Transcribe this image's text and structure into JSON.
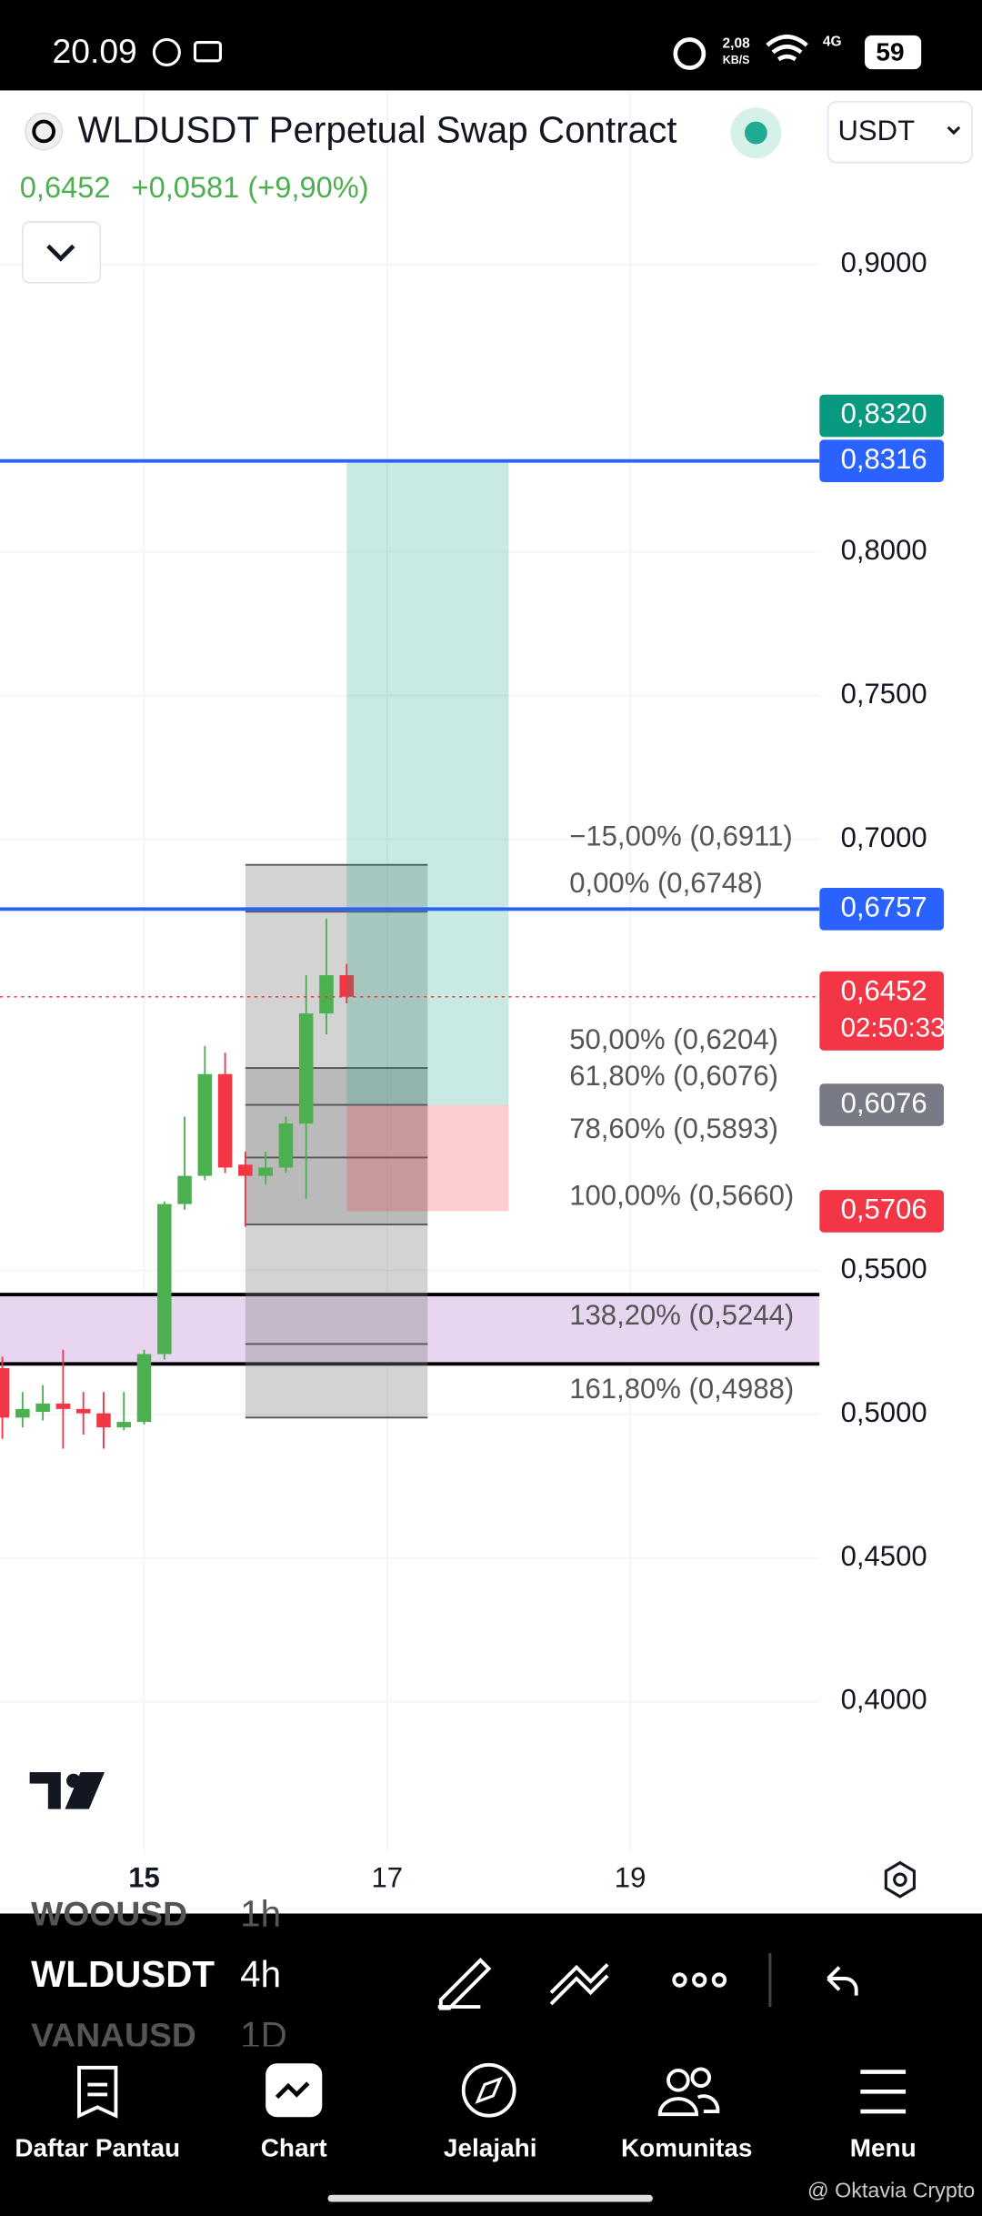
{
  "status_bar": {
    "time": "20.09",
    "speed": "2,08",
    "speed_unit": "KB/S",
    "network": "4G",
    "battery": "59"
  },
  "header": {
    "title": "WLDUSDT Perpetual Swap Contract",
    "currency": "USDT",
    "price": "0,6452",
    "change": "+0,0581 (+9,90%)"
  },
  "chart_data": {
    "type": "candlestick",
    "x": [
      13.8333,
      14,
      14.1667,
      14.3333,
      14.5,
      14.6667,
      14.8333,
      15,
      15.1667,
      15.3333,
      15.5,
      15.6667,
      15.8333,
      16,
      16.1667,
      16.3333,
      16.5,
      16.6667
    ],
    "open": [
      0.516,
      0.4988,
      0.5008,
      0.5037,
      0.5018,
      0.5003,
      0.4954,
      0.4973,
      0.5209,
      0.5731,
      0.5829,
      0.6183,
      0.5868,
      0.5829,
      0.5858,
      0.6011,
      0.6394,
      0.6527
    ],
    "high": [
      0.52,
      0.5077,
      0.5101,
      0.5224,
      0.5077,
      0.5077,
      0.5077,
      0.5224,
      0.574,
      0.6035,
      0.6281,
      0.6257,
      0.5913,
      0.5913,
      0.6035,
      0.6527,
      0.6724,
      0.6566
    ],
    "low": [
      0.4914,
      0.4954,
      0.4978,
      0.488,
      0.4929,
      0.488,
      0.4944,
      0.4964,
      0.519,
      0.5711,
      0.5814,
      0.5839,
      0.5652,
      0.5799,
      0.5839,
      0.575,
      0.6321,
      0.6429
    ],
    "close": [
      0.4988,
      0.5018,
      0.5037,
      0.5018,
      0.5003,
      0.4954,
      0.4973,
      0.5209,
      0.5731,
      0.5829,
      0.6183,
      0.5858,
      0.5829,
      0.5858,
      0.6011,
      0.6394,
      0.6527,
      0.6452
    ],
    "up_color": "#4caf50",
    "down_color": "#f23645",
    "xlim": [
      13.814,
      20.558
    ],
    "xticks": [
      15,
      17,
      19
    ],
    "ylim": [
      0.3479,
      0.9605
    ],
    "yticks": [
      {
        "value": 0.9,
        "label": "0,9000"
      },
      {
        "value": 0.8,
        "label": "0,8000"
      },
      {
        "value": 0.75,
        "label": "0,7500"
      },
      {
        "value": 0.7,
        "label": "0,7000"
      },
      {
        "value": 0.55,
        "label": "0,5500"
      },
      {
        "value": 0.5,
        "label": "0,5000"
      },
      {
        "value": 0.45,
        "label": "0,4500"
      },
      {
        "value": 0.4,
        "label": "0,4000"
      }
    ],
    "grid": true,
    "lines": [
      {
        "value": 0.8316,
        "color": "#2962ff"
      },
      {
        "value": 0.6757,
        "color": "#2962ff"
      }
    ],
    "zone": {
      "range": [
        0.5175,
        0.5416
      ],
      "color": "#e8d5f0"
    },
    "fib": {
      "x": [
        15.8333,
        17.3333
      ],
      "levels": [
        {
          "value": 0.6911,
          "label": "−15,00% (0,6911)"
        },
        {
          "value": 0.6748,
          "label": "0,00% (0,6748)"
        },
        {
          "value": 0.6204,
          "label": "50,00% (0,6204)"
        },
        {
          "value": 0.6076,
          "label": "61,80% (0,6076)"
        },
        {
          "value": 0.5893,
          "label": "78,60% (0,5893)"
        },
        {
          "value": 0.566,
          "label": "100,00% (0,5660)"
        },
        {
          "value": 0.5244,
          "label": "138,20% (0,5244)"
        },
        {
          "value": 0.4988,
          "label": "161,80% (0,4988)"
        }
      ]
    },
    "position": {
      "x": [
        16.6667,
        18.0
      ],
      "target": 0.832,
      "entry": 0.6076,
      "stop": 0.5706
    },
    "badges": [
      {
        "value": 0.8316,
        "label": "0,8316",
        "color": "#2962ff"
      },
      {
        "value": 0.832,
        "label": "0,8320",
        "color": "#089981"
      },
      {
        "value": 0.6757,
        "label": "0,6757",
        "color": "#2962ff"
      },
      {
        "value": 0.6452,
        "label": "0,6452",
        "sub": "02:50:33",
        "color": "#f23645",
        "line": "dotted"
      },
      {
        "value": 0.6076,
        "label": "0,6076",
        "color": "#787b86"
      },
      {
        "value": 0.5706,
        "label": "0,5706",
        "color": "#f23645"
      }
    ]
  },
  "toolbar": {
    "symbols": [
      "WOOUSD",
      "WLDUSDT",
      "VANAUSD"
    ],
    "intervals": [
      "1h",
      "4h",
      "1D"
    ]
  },
  "nav": [
    "Daftar Pantau",
    "Chart",
    "Jelajahi",
    "Komunitas",
    "Menu"
  ],
  "watermark": "@ Oktavia Crypto"
}
